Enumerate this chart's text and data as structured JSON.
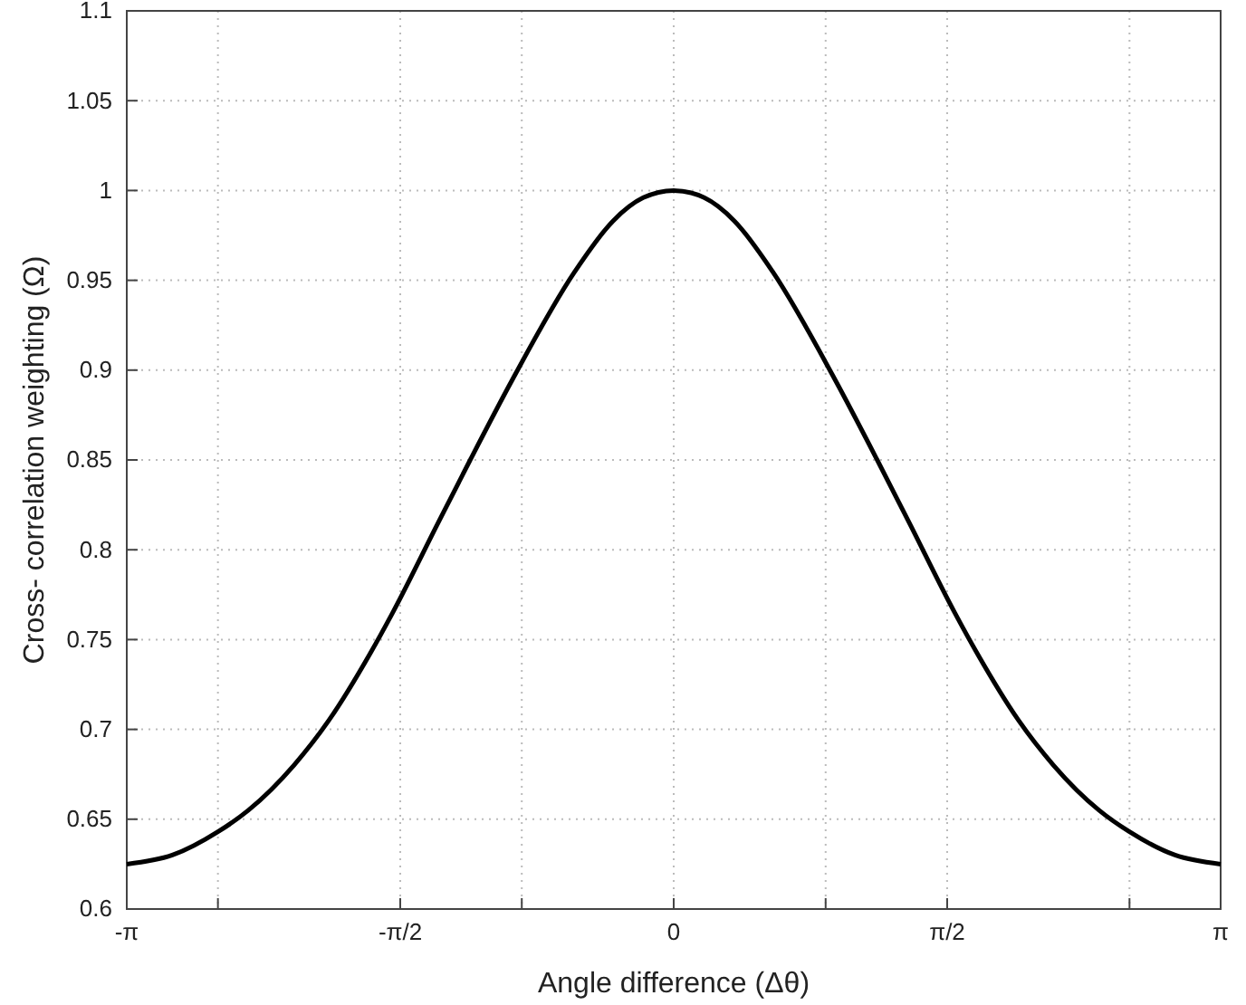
{
  "chart_data": {
    "type": "line",
    "xlabel": "Angle difference (Δθ)",
    "ylabel": "Cross- correlation weighting (Ω)",
    "xlim": [
      -3.1416,
      3.1416
    ],
    "xticks": [
      {
        "value": -3.1416,
        "label": "-π"
      },
      {
        "value": -2.618,
        "label": null
      },
      {
        "value": -1.5708,
        "label": "-π/2"
      },
      {
        "value": -0.8727,
        "label": null
      },
      {
        "value": 0,
        "label": "0"
      },
      {
        "value": 0.8727,
        "label": null
      },
      {
        "value": 1.5708,
        "label": "π/2"
      },
      {
        "value": 2.618,
        "label": null
      },
      {
        "value": 3.1416,
        "label": "π"
      }
    ],
    "ylim": [
      0.6,
      1.1
    ],
    "yticks": [
      0.6,
      0.65,
      0.7,
      0.75,
      0.8,
      0.85,
      0.9,
      0.95,
      1,
      1.05,
      1.1
    ],
    "grid": true,
    "line_style": "solid",
    "series": [
      {
        "color": "#000000",
        "x": [
          -3.1416,
          -2.88,
          -2.618,
          -2.443,
          -2.182,
          -1.981,
          -1.745,
          -1.614,
          -1.353,
          -1.169,
          -0.925,
          -0.567,
          -0.349,
          -0.175,
          0,
          0.175,
          0.349,
          0.567,
          0.925,
          1.169,
          1.353,
          1.614,
          1.745,
          1.981,
          2.182,
          2.443,
          2.618,
          2.88,
          3.1416
        ],
        "values": [
          0.625,
          0.63,
          0.643,
          0.655,
          0.68,
          0.705,
          0.742,
          0.765,
          0.815,
          0.85,
          0.895,
          0.955,
          0.983,
          0.996,
          1.0,
          0.996,
          0.983,
          0.955,
          0.895,
          0.85,
          0.815,
          0.765,
          0.742,
          0.705,
          0.68,
          0.655,
          0.643,
          0.63,
          0.625
        ]
      }
    ]
  }
}
